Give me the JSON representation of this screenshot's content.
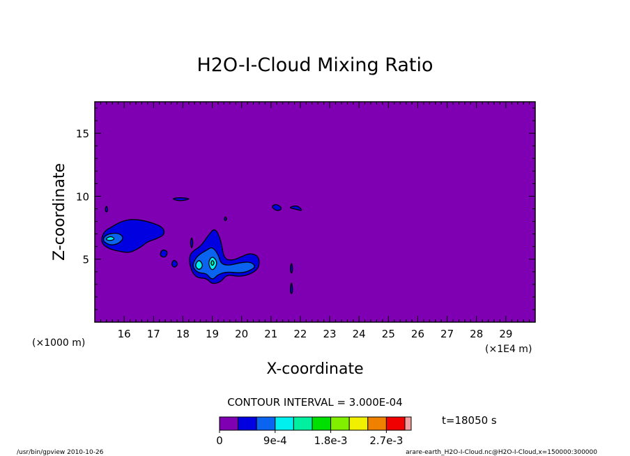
{
  "chart_data": {
    "type": "contour",
    "title": "H2O-I-Cloud Mixing Ratio",
    "xlabel": "X-coordinate",
    "ylabel": "Z-coordinate",
    "x_unit_left": "(×1000 m)",
    "x_unit_right": "(×1E4 m)",
    "xlim": [
      150000,
      300000
    ],
    "ylim": [
      0,
      17.5
    ],
    "xticks": [
      "16",
      "17",
      "18",
      "19",
      "20",
      "21",
      "22",
      "23",
      "24",
      "25",
      "26",
      "27",
      "28",
      "29"
    ],
    "yticks": [
      5,
      10,
      15
    ],
    "grid": false,
    "contour_interval": "CONTOUR INTERVAL = 3.000E-04",
    "time": "t=18050 s",
    "colorbar": {
      "colors": [
        "#7f00b2",
        "#0000e0",
        "#0a64f0",
        "#00f0f0",
        "#00f0a0",
        "#00e000",
        "#80f000",
        "#f0f000",
        "#f08000",
        "#f00000",
        "#f0a0a0"
      ],
      "labels": [
        "0",
        "9e-4",
        "1.8e-3",
        "2.7e-3"
      ]
    },
    "regions": [
      {
        "level": 1,
        "points": [
          [
            15.2,
            6.3
          ],
          [
            15.3,
            7.2
          ],
          [
            15.6,
            7.6
          ],
          [
            15.9,
            8.0
          ],
          [
            16.3,
            8.2
          ],
          [
            16.8,
            8.0
          ],
          [
            17.3,
            7.6
          ],
          [
            17.4,
            7.0
          ],
          [
            17.1,
            6.6
          ],
          [
            16.8,
            6.4
          ],
          [
            16.6,
            6.0
          ],
          [
            16.2,
            5.5
          ],
          [
            15.9,
            5.6
          ],
          [
            15.5,
            5.8
          ]
        ]
      },
      {
        "level": 2,
        "points": [
          [
            15.25,
            6.5
          ],
          [
            15.4,
            7.0
          ],
          [
            15.8,
            7.1
          ],
          [
            16.0,
            6.7
          ],
          [
            15.8,
            6.2
          ],
          [
            15.5,
            6.1
          ]
        ]
      },
      {
        "level": 3,
        "points": [
          [
            15.35,
            6.6
          ],
          [
            15.55,
            6.85
          ],
          [
            15.7,
            6.6
          ],
          [
            15.5,
            6.45
          ]
        ]
      },
      {
        "level": 1,
        "points": [
          [
            17.2,
            5.3
          ],
          [
            17.3,
            5.8
          ],
          [
            17.5,
            5.6
          ],
          [
            17.4,
            5.1
          ]
        ]
      },
      {
        "level": 1,
        "points": [
          [
            17.6,
            4.6
          ],
          [
            17.7,
            5.0
          ],
          [
            17.85,
            4.6
          ],
          [
            17.7,
            4.3
          ]
        ]
      },
      {
        "level": 1,
        "points": [
          [
            18.2,
            5.0
          ],
          [
            18.3,
            5.6
          ],
          [
            18.6,
            6.0
          ],
          [
            18.9,
            7.0
          ],
          [
            19.1,
            7.5
          ],
          [
            19.3,
            6.5
          ],
          [
            19.4,
            5.0
          ],
          [
            19.7,
            4.9
          ],
          [
            20.0,
            5.2
          ],
          [
            20.3,
            5.5
          ],
          [
            20.6,
            5.2
          ],
          [
            20.6,
            4.3
          ],
          [
            20.3,
            3.8
          ],
          [
            19.9,
            3.6
          ],
          [
            19.5,
            3.8
          ],
          [
            19.3,
            3.2
          ],
          [
            19.0,
            3.0
          ],
          [
            18.8,
            3.5
          ],
          [
            18.5,
            3.5
          ],
          [
            18.3,
            4.0
          ]
        ]
      },
      {
        "level": 2,
        "points": [
          [
            18.3,
            4.5
          ],
          [
            18.5,
            5.3
          ],
          [
            18.8,
            5.7
          ],
          [
            19.0,
            6.0
          ],
          [
            19.2,
            5.4
          ],
          [
            19.3,
            4.6
          ],
          [
            19.6,
            4.5
          ],
          [
            19.9,
            4.7
          ],
          [
            20.3,
            4.8
          ],
          [
            20.5,
            4.4
          ],
          [
            20.2,
            4.0
          ],
          [
            19.9,
            3.9
          ],
          [
            19.5,
            4.0
          ],
          [
            19.2,
            3.8
          ],
          [
            19.0,
            3.3
          ],
          [
            18.8,
            3.9
          ],
          [
            18.5,
            3.9
          ]
        ]
      },
      {
        "level": 3,
        "points": [
          [
            18.4,
            4.5
          ],
          [
            18.55,
            5.0
          ],
          [
            18.7,
            4.5
          ],
          [
            18.55,
            4.1
          ]
        ]
      },
      {
        "level": 3,
        "points": [
          [
            18.85,
            4.7
          ],
          [
            19.0,
            5.3
          ],
          [
            19.2,
            4.7
          ],
          [
            19.0,
            4.0
          ]
        ]
      },
      {
        "level": 4,
        "points": [
          [
            18.95,
            4.7
          ],
          [
            19.0,
            4.95
          ],
          [
            19.08,
            4.7
          ],
          [
            19.0,
            4.45
          ]
        ]
      },
      {
        "level": 1,
        "points": [
          [
            17.6,
            9.8
          ],
          [
            17.9,
            9.9
          ],
          [
            18.3,
            9.8
          ],
          [
            17.9,
            9.6
          ]
        ]
      },
      {
        "level": 1,
        "points": [
          [
            21.0,
            9.2
          ],
          [
            21.2,
            9.4
          ],
          [
            21.4,
            9.0
          ],
          [
            21.2,
            8.8
          ]
        ]
      },
      {
        "level": 1,
        "points": [
          [
            21.6,
            9.1
          ],
          [
            21.9,
            9.3
          ],
          [
            22.1,
            8.8
          ],
          [
            21.8,
            9.0
          ]
        ]
      },
      {
        "level": 1,
        "points": [
          [
            21.65,
            4.2
          ],
          [
            21.7,
            4.8
          ],
          [
            21.75,
            4.2
          ],
          [
            21.7,
            3.8
          ]
        ]
      },
      {
        "level": 1,
        "points": [
          [
            21.65,
            2.5
          ],
          [
            21.7,
            3.3
          ],
          [
            21.75,
            2.5
          ],
          [
            21.7,
            2.2
          ]
        ]
      },
      {
        "level": 1,
        "points": [
          [
            15.35,
            8.9
          ],
          [
            15.4,
            9.3
          ],
          [
            15.45,
            8.9
          ],
          [
            15.4,
            8.7
          ]
        ]
      },
      {
        "level": 1,
        "points": [
          [
            19.4,
            8.2
          ],
          [
            19.45,
            8.4
          ],
          [
            19.5,
            8.2
          ],
          [
            19.45,
            8.0
          ]
        ]
      },
      {
        "level": 1,
        "points": [
          [
            18.25,
            6.3
          ],
          [
            18.3,
            6.8
          ],
          [
            18.35,
            6.3
          ],
          [
            18.3,
            5.8
          ]
        ]
      }
    ]
  },
  "footer": {
    "left": "/usr/bin/gpview   2010-10-26",
    "right": "arare-earth_H2O-I-Cloud.nc@H2O-I-Cloud,x=150000:300000"
  }
}
